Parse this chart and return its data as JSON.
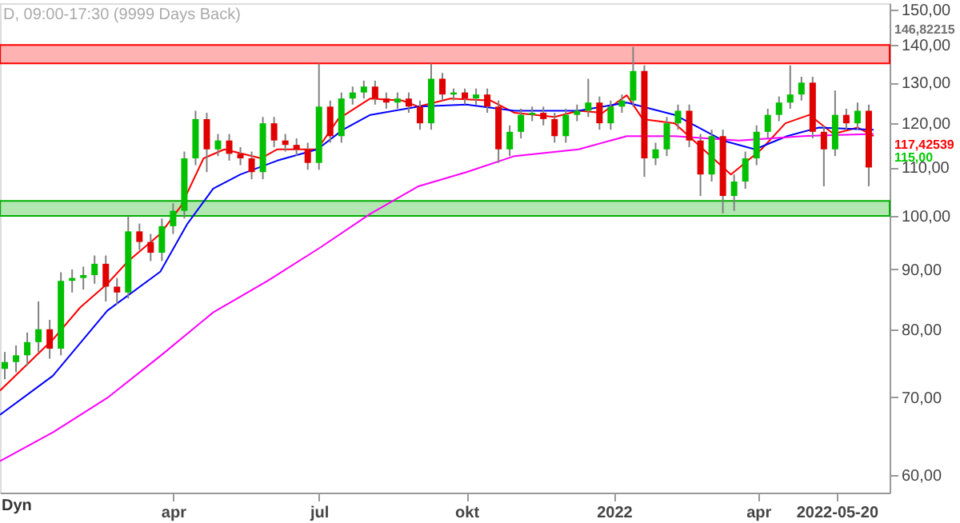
{
  "chart_data": {
    "type": "candlestick",
    "title": "D, 09:00-17:30 (9999 Days Back)",
    "x": [
      "2020-12-17",
      "2020-12-24",
      "2020-12-31",
      "2021-01-07",
      "2021-01-14",
      "2021-01-21",
      "2021-01-28",
      "2021-02-04",
      "2021-02-11",
      "2021-02-18",
      "2021-02-25",
      "2021-03-04",
      "2021-03-11",
      "2021-03-18",
      "2021-03-25",
      "2021-04-01",
      "2021-04-08",
      "2021-04-15",
      "2021-04-22",
      "2021-04-29",
      "2021-05-06",
      "2021-05-13",
      "2021-05-20",
      "2021-05-27",
      "2021-06-03",
      "2021-06-10",
      "2021-06-17",
      "2021-06-24",
      "2021-07-01",
      "2021-07-08",
      "2021-07-15",
      "2021-07-22",
      "2021-07-29",
      "2021-08-05",
      "2021-08-12",
      "2021-08-19",
      "2021-08-26",
      "2021-09-02",
      "2021-09-09",
      "2021-09-16",
      "2021-09-23",
      "2021-09-30",
      "2021-10-07",
      "2021-10-14",
      "2021-10-21",
      "2021-10-28",
      "2021-11-04",
      "2021-11-11",
      "2021-11-18",
      "2021-11-25",
      "2021-12-02",
      "2021-12-09",
      "2021-12-16",
      "2021-12-23",
      "2021-12-30",
      "2022-01-06",
      "2022-01-13",
      "2022-01-20",
      "2022-01-27",
      "2022-02-03",
      "2022-02-10",
      "2022-02-17",
      "2022-02-24",
      "2022-03-03",
      "2022-03-10",
      "2022-03-17",
      "2022-03-24",
      "2022-03-31",
      "2022-04-07",
      "2022-04-14",
      "2022-04-21",
      "2022-04-28",
      "2022-05-05",
      "2022-05-12",
      "2022-05-19",
      "2022-05-26",
      "2022-06-02",
      "2022-06-09"
    ],
    "ohlc": [
      [
        74,
        76.5,
        72.5,
        75
      ],
      [
        75,
        77.5,
        73.5,
        76
      ],
      [
        76,
        79.5,
        74.5,
        78
      ],
      [
        78,
        84.5,
        76.5,
        80
      ],
      [
        80,
        81.5,
        75.5,
        77
      ],
      [
        77,
        89.5,
        76,
        88
      ],
      [
        88,
        90,
        86,
        88.5
      ],
      [
        88.5,
        90.5,
        86.5,
        89
      ],
      [
        89,
        92.5,
        87.5,
        91
      ],
      [
        91,
        92.5,
        84.5,
        87
      ],
      [
        87,
        88.5,
        84,
        86
      ],
      [
        86,
        100,
        85,
        97
      ],
      [
        97,
        98.5,
        93.5,
        95
      ],
      [
        95,
        96.5,
        91.5,
        93
      ],
      [
        93,
        99.5,
        91.5,
        98
      ],
      [
        98,
        102.5,
        96.5,
        101
      ],
      [
        101,
        113.5,
        99.5,
        112
      ],
      [
        112,
        123,
        110.5,
        121
      ],
      [
        121,
        122.5,
        109,
        114
      ],
      [
        114,
        117.5,
        112.5,
        116
      ],
      [
        116,
        117.5,
        111.5,
        113
      ],
      [
        113,
        114.5,
        110.5,
        112
      ],
      [
        112,
        113.5,
        107.5,
        109
      ],
      [
        109,
        121.5,
        107.5,
        120
      ],
      [
        120,
        121.5,
        114.5,
        116
      ],
      [
        116,
        117.5,
        113.5,
        115
      ],
      [
        115,
        116.5,
        112.5,
        114
      ],
      [
        114,
        115.5,
        109.5,
        111
      ],
      [
        111,
        135,
        109.5,
        124
      ],
      [
        124,
        125.5,
        115.5,
        117
      ],
      [
        117,
        127.5,
        115.5,
        126
      ],
      [
        126,
        129,
        124.5,
        127.5
      ],
      [
        127.5,
        130.5,
        126,
        129
      ],
      [
        129,
        130.5,
        124.5,
        126
      ],
      [
        126,
        127.5,
        123.5,
        125
      ],
      [
        125,
        127.5,
        123.5,
        126
      ],
      [
        126,
        127.5,
        122.5,
        124
      ],
      [
        124,
        125.5,
        118.5,
        120
      ],
      [
        120,
        135,
        118.5,
        131
      ],
      [
        131,
        132.5,
        125.5,
        127
      ],
      [
        127,
        128.5,
        125.5,
        127.5
      ],
      [
        127.5,
        128.5,
        124.5,
        126
      ],
      [
        126,
        128.5,
        124.5,
        127
      ],
      [
        127,
        128.5,
        122.5,
        124
      ],
      [
        124,
        125.5,
        111,
        114
      ],
      [
        114,
        119.5,
        112.5,
        118
      ],
      [
        118,
        123.5,
        116.5,
        122
      ],
      [
        122,
        124,
        120.5,
        122.5
      ],
      [
        122.5,
        124,
        119.5,
        121
      ],
      [
        121,
        122.5,
        115.5,
        117
      ],
      [
        117,
        123.5,
        115.5,
        122
      ],
      [
        122,
        124.5,
        120.5,
        123
      ],
      [
        123,
        131,
        121.5,
        125
      ],
      [
        125,
        126.5,
        118.5,
        120
      ],
      [
        120,
        125.5,
        118.5,
        124
      ],
      [
        124,
        127,
        122.5,
        125.5
      ],
      [
        125.5,
        139.5,
        124,
        133
      ],
      [
        133,
        134.5,
        108,
        112
      ],
      [
        112,
        115.5,
        110.5,
        114
      ],
      [
        114,
        121.5,
        112.5,
        120
      ],
      [
        120,
        124.5,
        118.5,
        123
      ],
      [
        123,
        124.5,
        114.5,
        116
      ],
      [
        116,
        117.5,
        104,
        108.5
      ],
      [
        108.5,
        118.5,
        107,
        117
      ],
      [
        117,
        118.5,
        100.5,
        104
      ],
      [
        104,
        108.5,
        101,
        107
      ],
      [
        107,
        113.5,
        105.5,
        112
      ],
      [
        112,
        119.5,
        110.5,
        118
      ],
      [
        118,
        123.5,
        116.5,
        122
      ],
      [
        122,
        126.5,
        120.5,
        125
      ],
      [
        125,
        134.5,
        123.5,
        127
      ],
      [
        127,
        131.5,
        125.5,
        130
      ],
      [
        130,
        131.5,
        116.5,
        118
      ],
      [
        118,
        119.5,
        106,
        114
      ],
      [
        114,
        128,
        112.5,
        122
      ],
      [
        122,
        123.5,
        118.5,
        120
      ],
      [
        120,
        125,
        118.5,
        123
      ],
      [
        123,
        124.5,
        106,
        110
      ]
    ],
    "colors": [
      "#00c000",
      "#00c000",
      "#00c000",
      "#00c000",
      "#e00000",
      "#00c000",
      "#00c000",
      "#00c000",
      "#00c000",
      "#e00000",
      "#e00000",
      "#00c000",
      "#e00000",
      "#e00000",
      "#00c000",
      "#00c000",
      "#00c000",
      "#00c000",
      "#e00000",
      "#00c000",
      "#e00000",
      "#e00000",
      "#e00000",
      "#00c000",
      "#e00000",
      "#e00000",
      "#e00000",
      "#e00000",
      "#00c000",
      "#e00000",
      "#00c000",
      "#00c000",
      "#00c000",
      "#e00000",
      "#e00000",
      "#00c000",
      "#e00000",
      "#e00000",
      "#00c000",
      "#e00000",
      "#00c000",
      "#e00000",
      "#00c000",
      "#e00000",
      "#e00000",
      "#00c000",
      "#00c000",
      "#00c000",
      "#e00000",
      "#e00000",
      "#00c000",
      "#00c000",
      "#00c000",
      "#e00000",
      "#00c000",
      "#00c000",
      "#00c000",
      "#e00000",
      "#00c000",
      "#00c000",
      "#00c000",
      "#e00000",
      "#e00000",
      "#00c000",
      "#e00000",
      "#00c000",
      "#00c000",
      "#00c000",
      "#00c000",
      "#00c000",
      "#00c000",
      "#00c000",
      "#e00000",
      "#e00000",
      "#00c000",
      "#e00000",
      "#00c000",
      "#e00000"
    ],
    "series": [
      {
        "type": "line",
        "color": "#ff0000",
        "x": [
          "2020-12-14",
          "2021-01-16",
          "2021-02-02",
          "2021-02-19",
          "2021-03-04",
          "2021-03-24",
          "2021-04-06",
          "2021-04-20",
          "2021-05-03",
          "2021-05-26",
          "2021-06-05",
          "2021-06-23",
          "2021-06-30",
          "2021-07-13",
          "2021-08-02",
          "2021-08-22",
          "2021-09-01",
          "2021-09-21",
          "2021-10-16",
          "2021-10-31",
          "2021-11-25",
          "2021-12-10",
          "2021-12-25",
          "2022-01-09",
          "2022-01-19",
          "2022-02-08",
          "2022-03-15",
          "2022-04-03",
          "2022-04-18",
          "2022-05-03",
          "2022-05-18",
          "2022-06-02",
          "2022-06-12"
        ],
        "values": [
          70.9,
          78.4,
          83.5,
          87.5,
          91.5,
          96.5,
          102,
          112,
          114,
          112,
          114,
          114,
          114,
          121,
          126,
          125.5,
          124,
          126,
          125.5,
          122.5,
          121.5,
          123,
          122.5,
          126.8,
          121,
          120,
          108.5,
          114,
          120,
          122,
          117.5,
          119,
          117
        ]
      },
      {
        "type": "line",
        "color": "#0000ff",
        "x": [
          "2020-12-14",
          "2021-01-16",
          "2021-02-19",
          "2021-03-24",
          "2021-04-10",
          "2021-04-26",
          "2021-05-13",
          "2021-06-05",
          "2021-06-30",
          "2021-07-16",
          "2021-08-02",
          "2021-09-01",
          "2021-10-01",
          "2021-10-31",
          "2021-12-10",
          "2022-01-09",
          "2022-02-08",
          "2022-03-10",
          "2022-03-30",
          "2022-04-19",
          "2022-05-09",
          "2022-06-12"
        ],
        "values": [
          67.6,
          73,
          83,
          89.6,
          98.5,
          105.5,
          108.5,
          111.5,
          114,
          118.5,
          122,
          124,
          124.5,
          123,
          123,
          125,
          122,
          116,
          114,
          117,
          119,
          118.5
        ]
      },
      {
        "type": "line",
        "color": "#ff00ff",
        "x": [
          "2020-12-14",
          "2021-01-16",
          "2021-02-19",
          "2021-03-24",
          "2021-04-26",
          "2021-05-30",
          "2021-07-02",
          "2021-08-02",
          "2021-09-01",
          "2021-10-01",
          "2021-10-31",
          "2021-12-10",
          "2022-01-09",
          "2022-02-08",
          "2022-03-20",
          "2022-04-29",
          "2022-06-12"
        ],
        "values": [
          61.7,
          65.3,
          69.9,
          75.9,
          82.7,
          88,
          94,
          100.4,
          106,
          109,
          112.5,
          114,
          117,
          117,
          116,
          117,
          117.5
        ]
      }
    ],
    "bands": [
      {
        "axis": "y",
        "from": 135,
        "to": 140,
        "color": "#ff0000"
      },
      {
        "axis": "y",
        "from": 100,
        "to": 103,
        "color": "#00b000"
      }
    ],
    "annotations": [
      "Dyn",
      "146,82215",
      "117,42539",
      "115,00"
    ],
    "log": true,
    "grid": false,
    "xlim": [
      "2020-12-14",
      "2022-06-22"
    ],
    "xticks": [
      {
        "value": "2021-04-01",
        "label": "apr"
      },
      {
        "value": "2021-07-01",
        "label": "jul"
      },
      {
        "value": "2021-10-01",
        "label": "okt"
      },
      {
        "value": "2022-01-01",
        "label": "2022"
      },
      {
        "value": "2022-04-01",
        "label": "apr"
      },
      {
        "value": "2022-05-20",
        "label": "2022-05-20"
      }
    ],
    "ylim": [
      58,
      152
    ],
    "yticks": [
      {
        "value": 60,
        "label": "60,00"
      },
      {
        "value": 70,
        "label": "70,00"
      },
      {
        "value": 80,
        "label": "80,00"
      },
      {
        "value": 90,
        "label": "90,00"
      },
      {
        "value": 100,
        "label": "100,00"
      },
      {
        "value": 110,
        "label": "110,00"
      },
      {
        "value": 120,
        "label": "120,00"
      },
      {
        "value": 130,
        "label": "130,00"
      },
      {
        "value": 140,
        "label": "140,00"
      },
      {
        "value": 150,
        "label": "150,00"
      }
    ]
  }
}
